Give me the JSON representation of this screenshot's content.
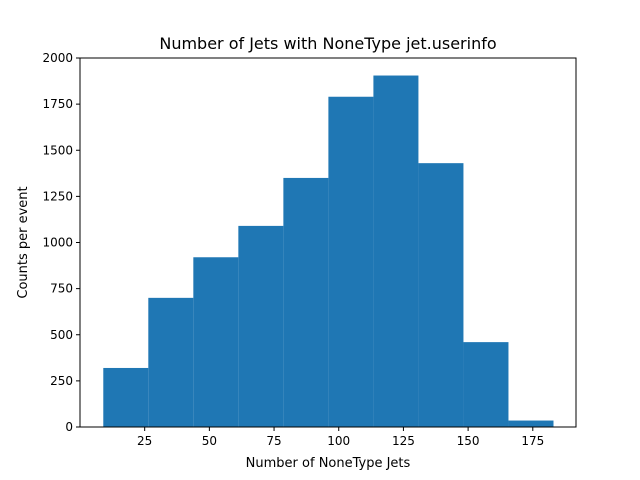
{
  "chart_data": {
    "type": "bar",
    "title": "Number of Jets with NoneType jet.userinfo",
    "xlabel": "Number of NoneType Jets",
    "ylabel": "Counts per event",
    "bin_edges": [
      9.0,
      26.4,
      43.8,
      61.2,
      78.6,
      96.0,
      113.4,
      130.8,
      148.2,
      165.6,
      183.0
    ],
    "values": [
      320,
      700,
      920,
      1090,
      1350,
      1790,
      1905,
      1430,
      460,
      35
    ],
    "xlim": [
      0,
      191.7
    ],
    "ylim": [
      0,
      2000
    ],
    "xticks": [
      25,
      50,
      75,
      100,
      125,
      150,
      175
    ],
    "yticks": [
      0,
      250,
      500,
      750,
      1000,
      1250,
      1500,
      1750,
      2000
    ],
    "bar_color": "#1f77b4",
    "grid": false,
    "legend": "none"
  }
}
